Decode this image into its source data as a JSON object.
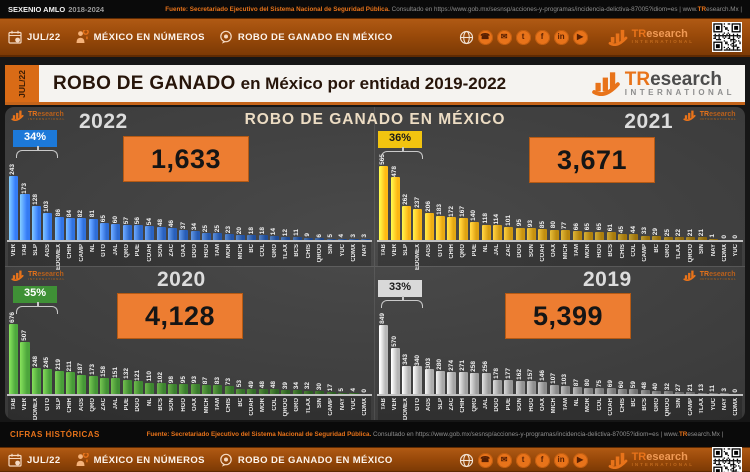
{
  "theme": {
    "accent_orange": "#ed7d31",
    "ribbon_orange": "#9a4a0a"
  },
  "top_strip": {
    "left_bold": "SEXENIO AMLO",
    "left_years": "2018-2024"
  },
  "source": {
    "bold": "Fuente: Secretariado Ejecutivo del Sistema Nacional de Seguridad Pública.",
    "plain": " Consultado en https://www.gob.mx/sesnsp/acciones-y-programas/incidencia-delictiva-87005?idiom=es | www.",
    "brand_tr": "TR",
    "brand_rest": "esearch.Mx |"
  },
  "ribbon": {
    "date": "JUL/22",
    "brand": "MÉXICO EN NÚMEROS",
    "topic": "ROBO DE GANADO EN MÉXICO",
    "social": [
      "globe",
      "phone",
      "email",
      "twitter",
      "facebook",
      "linkedin",
      "youtube"
    ]
  },
  "brand": {
    "tr": "TR",
    "rest": "esearch",
    "sub": "INTERNATIONAL"
  },
  "title_bar": {
    "tab": "JUL/22",
    "title_strong": "ROBO DE GANADO",
    "title_rest": "en México por entidad 2019-2022"
  },
  "panel_heading": "ROBO DE GANADO EN MÉXICO",
  "footer": {
    "left": "CIFRAS HISTÓRICAS"
  },
  "chart_data": [
    {
      "type": "bar",
      "year": "2022",
      "total": "1,633",
      "share_badge": "34%",
      "badge_bg": "#1c79d9",
      "badge_fg": "#ffffff",
      "bar_light": "#6aa4f7",
      "bar_base": "#2a62c0",
      "categories": [
        "VER",
        "TAB",
        "SLP",
        "AGS",
        "EDOMEX",
        "CHIH",
        "CAMP",
        "NL",
        "GTO",
        "JAL",
        "QRO",
        "PUE",
        "COAH",
        "SON",
        "ZAC",
        "OAX",
        "DGO",
        "HGO",
        "TAM",
        "MOR",
        "MICH",
        "BC",
        "COL",
        "GRO",
        "TLAX",
        "BCS",
        "CHIS",
        "QROO",
        "SIN",
        "YUC",
        "CDMX",
        "NAY"
      ],
      "values": [
        243,
        173,
        128,
        103,
        86,
        84,
        82,
        81,
        65,
        60,
        57,
        56,
        54,
        48,
        46,
        37,
        34,
        25,
        25,
        23,
        20,
        18,
        18,
        14,
        12,
        11,
        9,
        6,
        5,
        4,
        3,
        3
      ]
    },
    {
      "type": "bar",
      "year": "2021",
      "total": "3,671",
      "share_badge": "36%",
      "badge_bg": "#f2c410",
      "badge_fg": "#1a1a1a",
      "bar_light": "#f4c93f",
      "bar_base": "#c79210",
      "categories": [
        "TAB",
        "VER",
        "SLP",
        "EDOMEX",
        "AGS",
        "GTO",
        "CHIH",
        "QRO",
        "PUE",
        "NL",
        "JAL",
        "ZAC",
        "DGO",
        "SON",
        "COAH",
        "OAX",
        "MICH",
        "TAM",
        "MOR",
        "HGO",
        "BCS",
        "CHIS",
        "COL",
        "CAMP",
        "BC",
        "GRO",
        "TLAX",
        "QROO",
        "SIN",
        "NAY",
        "CDMX",
        "YUC"
      ],
      "values": [
        565,
        478,
        262,
        237,
        206,
        183,
        172,
        167,
        140,
        118,
        114,
        101,
        95,
        93,
        85,
        80,
        77,
        66,
        65,
        65,
        61,
        45,
        44,
        33,
        29,
        25,
        22,
        21,
        21,
        1,
        0,
        0
      ]
    },
    {
      "type": "bar",
      "year": "2020",
      "total": "4,128",
      "share_badge": "35%",
      "badge_bg": "#3f9136",
      "badge_fg": "#ffffff",
      "bar_light": "#6cb54a",
      "bar_base": "#3d8430",
      "categories": [
        "TAB",
        "VER",
        "EDOMEX",
        "GTO",
        "SLP",
        "CHIH",
        "AGS",
        "QRO",
        "ZAC",
        "JAL",
        "PUE",
        "DGO",
        "NL",
        "BCS",
        "SON",
        "HGO",
        "OAX",
        "MICH",
        "TAM",
        "CHIS",
        "BC",
        "COAH",
        "MOR",
        "COL",
        "QROO",
        "GRO",
        "TLAX",
        "SIN",
        "CAMP",
        "NAY",
        "YUC",
        "CDMX"
      ],
      "values": [
        676,
        507,
        248,
        245,
        219,
        211,
        187,
        173,
        158,
        151,
        132,
        121,
        110,
        102,
        98,
        95,
        93,
        87,
        83,
        73,
        53,
        49,
        48,
        48,
        39,
        34,
        32,
        30,
        17,
        5,
        4,
        0
      ]
    },
    {
      "type": "bar",
      "year": "2019",
      "total": "5,399",
      "share_badge": "33%",
      "badge_bg": "#d9d9d9",
      "badge_fg": "#1a1a1a",
      "bar_light": "#d2d2d2",
      "bar_base": "#909090",
      "categories": [
        "TAB",
        "VER",
        "EDOMEX",
        "GTO",
        "AGS",
        "SLP",
        "ZAC",
        "CHIH",
        "QRO",
        "JAL",
        "DGO",
        "PUE",
        "SON",
        "HGO",
        "OAX",
        "MICH",
        "TAM",
        "NL",
        "MOR",
        "COL",
        "COAH",
        "CHIS",
        "BC",
        "BCS",
        "GRO",
        "QROO",
        "SIN",
        "CAMP",
        "TLAX",
        "YUC",
        "NAY",
        "CDMX"
      ],
      "values": [
        849,
        570,
        343,
        340,
        303,
        280,
        274,
        271,
        258,
        256,
        178,
        177,
        162,
        157,
        146,
        107,
        103,
        87,
        80,
        75,
        69,
        60,
        59,
        48,
        40,
        32,
        27,
        21,
        13,
        11,
        3,
        0
      ]
    }
  ]
}
